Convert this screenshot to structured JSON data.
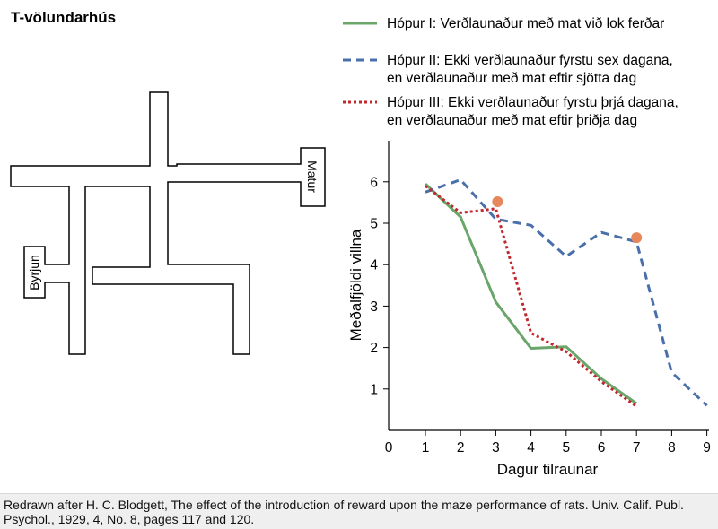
{
  "maze": {
    "title": "T-völundarhús",
    "start_label": "Byrjun",
    "food_label": "Matur"
  },
  "chart_data": {
    "type": "line",
    "xlabel": "Dagur tilraunar",
    "ylabel": "Meðalfjöldi villna",
    "xlim": [
      0,
      9
    ],
    "ylim": [
      0,
      6.5
    ],
    "x_ticks": [
      "0",
      "1",
      "2",
      "3",
      "4",
      "5",
      "6",
      "7",
      "8",
      "9"
    ],
    "y_ticks": [
      "1",
      "2",
      "3",
      "4",
      "5",
      "6"
    ],
    "grid": false,
    "legend_position": "top",
    "series": [
      {
        "name": "Hópur I: Verðlaunaður með mat við lok ferðar",
        "name_line2": "",
        "color": "#6aa56a",
        "style": "solid",
        "x": [
          1,
          2,
          3,
          4,
          5,
          6,
          7
        ],
        "y": [
          5.95,
          5.15,
          3.1,
          1.98,
          2.02,
          1.25,
          0.65
        ]
      },
      {
        "name": "Hópur II: Ekki verðlaunaður fyrstu sex dagana,",
        "name_line2": "en verðlaunaður með mat eftir sjötta dag",
        "color": "#4a6faa",
        "style": "dashed",
        "x": [
          1,
          2,
          3,
          4,
          5,
          6,
          7,
          8,
          9
        ],
        "y": [
          5.75,
          6.05,
          5.1,
          4.95,
          4.2,
          4.78,
          4.55,
          1.4,
          0.6
        ]
      },
      {
        "name": "Hópur III: Ekki verðlaunaður fyrstu þrjá dagana,",
        "name_line2": "en verðlaunaður með mat eftir þriðja dag",
        "color": "#c0282e",
        "style": "dotted",
        "x": [
          1,
          2,
          3,
          4,
          5,
          6,
          7
        ],
        "y": [
          5.9,
          5.25,
          5.35,
          2.35,
          1.9,
          1.18,
          0.58
        ]
      }
    ],
    "markers": [
      {
        "x": 3.05,
        "y": 5.52,
        "color": "#e8875b"
      },
      {
        "x": 7.0,
        "y": 4.65,
        "color": "#e8875b"
      }
    ]
  },
  "credit": {
    "text": "Redrawn after H. C. Blodgett, The effect of the introduction of reward upon the maze performance of rats. Univ. Calif. Publ. Psychol., 1929, 4, No. 8, pages 117 and 120."
  }
}
